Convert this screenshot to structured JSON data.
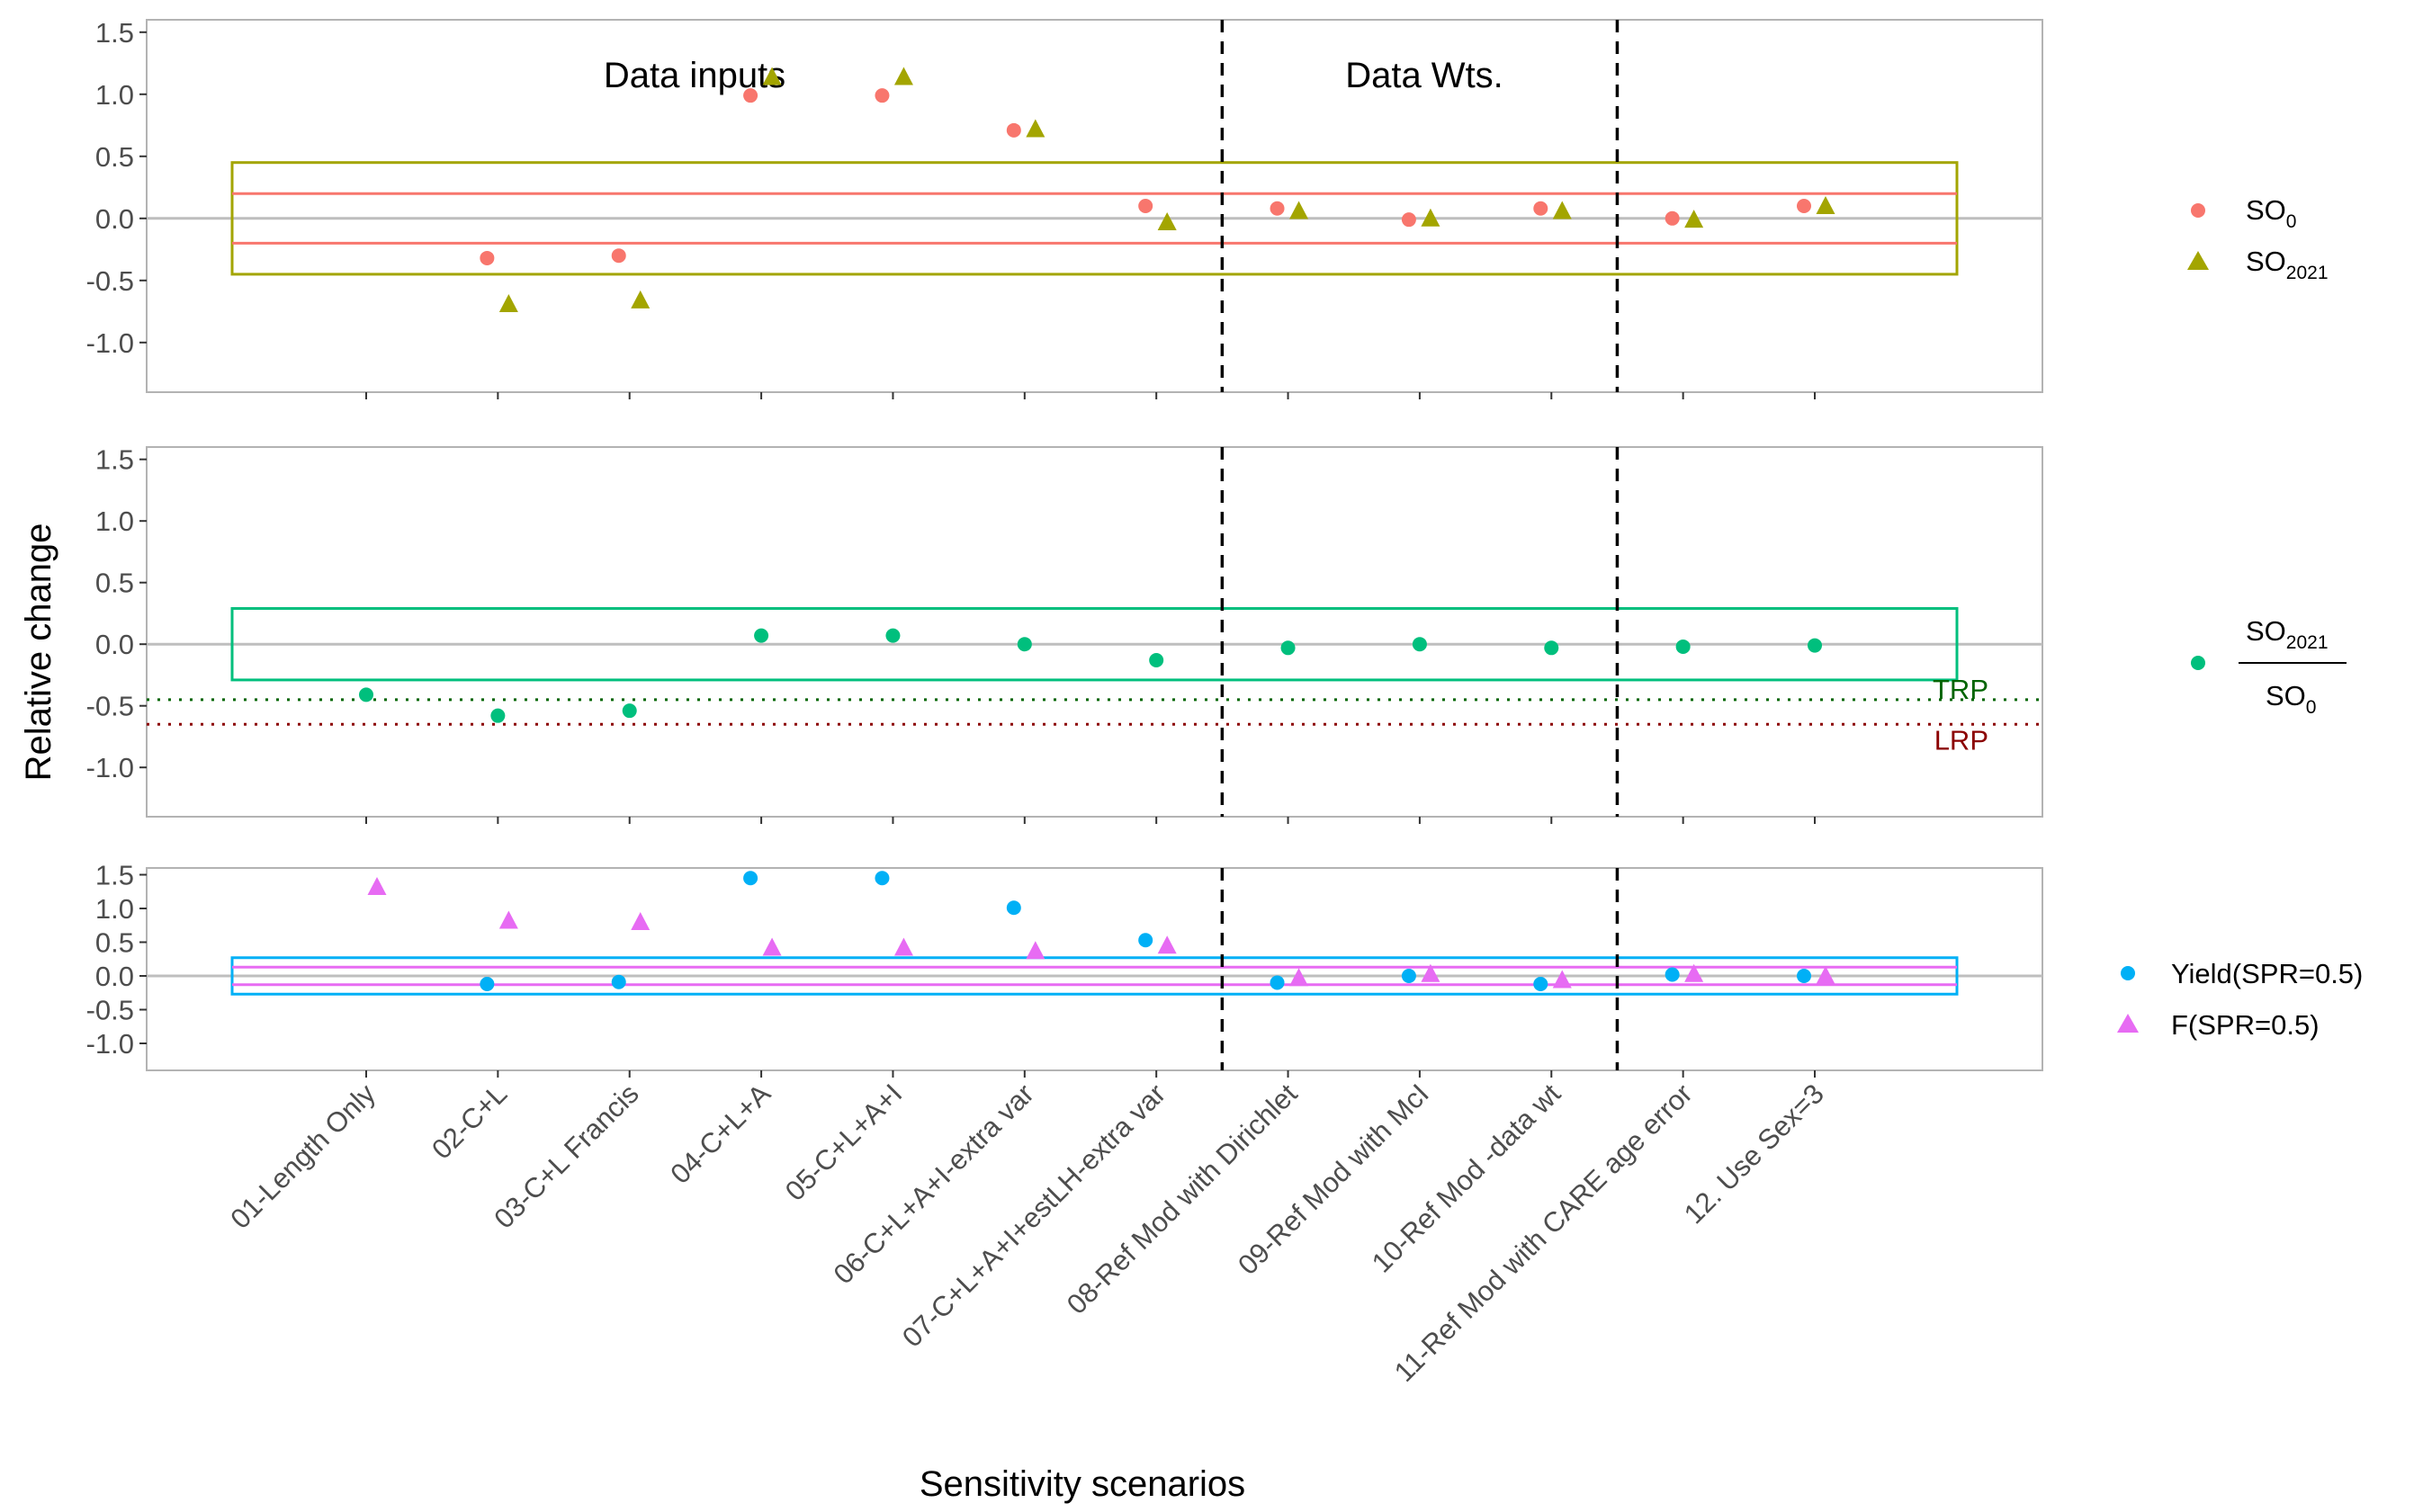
{
  "chart_data": {
    "type": "scatter",
    "xlabel": "Sensitivity scenarios",
    "ylabel": "Relative change",
    "categories": [
      "01-Length Only",
      "02-C+L",
      "03-C+L Francis",
      "04-C+L+A",
      "05-C+L+A+I",
      "06-C+L+A+I-extra var",
      "07-C+L+A+I+estLH-extra var",
      "08-Ref Mod with Dirichlet",
      "09-Ref Mod with McI",
      "10-Ref Mod -data wt",
      "11-Ref Mod with CARE age error",
      "12. Use Sex=3"
    ],
    "group_dividers_after": [
      7.5,
      10.5
    ],
    "panels": [
      {
        "id": "so",
        "ylim": [
          -1.4,
          1.6
        ],
        "yticks": [
          "1.5",
          "1.0",
          "0.5",
          "0.0",
          "-0.5",
          "-1.0"
        ],
        "ytick_values": [
          1.5,
          1.0,
          0.5,
          0.0,
          -0.5,
          -1.0
        ],
        "group_labels": [
          "Data inputs",
          "Data Wts."
        ],
        "bands": [
          {
            "lo": -0.45,
            "hi": 0.45,
            "color": "#A3A500"
          },
          {
            "lo": -0.2,
            "hi": 0.2,
            "color": "#F8766D",
            "lines_only": true
          }
        ],
        "series": [
          {
            "name": "SO0",
            "label": "SO",
            "sub": "0",
            "shape": "circle",
            "color": "#F8766D",
            "values": [
              null,
              -0.32,
              -0.3,
              0.99,
              0.99,
              0.71,
              0.1,
              0.08,
              -0.01,
              0.08,
              0.0,
              0.1
            ]
          },
          {
            "name": "SO2021",
            "label": "SO",
            "sub": "2021",
            "shape": "triangle",
            "color": "#A3A500",
            "values": [
              null,
              -0.69,
              -0.66,
              1.14,
              1.14,
              0.72,
              -0.03,
              0.06,
              0.0,
              0.06,
              -0.01,
              0.1
            ]
          }
        ]
      },
      {
        "id": "ratio",
        "ylim": [
          -1.4,
          1.6
        ],
        "yticks": [
          "1.5",
          "1.0",
          "0.5",
          "0.0",
          "-0.5",
          "-1.0"
        ],
        "ytick_values": [
          1.5,
          1.0,
          0.5,
          0.0,
          -0.5,
          -1.0
        ],
        "bands": [
          {
            "lo": -0.29,
            "hi": 0.29,
            "color": "#00BF7D"
          }
        ],
        "reference_lines": [
          {
            "label": "TRP",
            "value": -0.45,
            "color": "#006400"
          },
          {
            "label": "LRP",
            "value": -0.65,
            "color": "#8B0000"
          }
        ],
        "series": [
          {
            "name": "SO2021/SO0",
            "num": "SO",
            "num_sub": "2021",
            "den": "SO",
            "den_sub": "0",
            "shape": "circle",
            "color": "#00BF7D",
            "values": [
              -0.41,
              -0.58,
              -0.54,
              0.07,
              0.07,
              0.0,
              -0.13,
              -0.03,
              0.0,
              -0.03,
              -0.02,
              -0.01
            ]
          }
        ]
      },
      {
        "id": "yield",
        "ylim": [
          -1.4,
          1.6
        ],
        "yticks": [
          "1.5",
          "1.0",
          "0.5",
          "0.0",
          "-0.5",
          "-1.0"
        ],
        "ytick_values": [
          1.5,
          1.0,
          0.5,
          0.0,
          -0.5,
          -1.0
        ],
        "bands": [
          {
            "lo": -0.27,
            "hi": 0.27,
            "color": "#00B0F6"
          },
          {
            "lo": -0.13,
            "hi": 0.13,
            "color": "#E76BF3",
            "lines_only": true
          }
        ],
        "series": [
          {
            "name": "Yield(SPR=0.5)",
            "label": "Yield(SPR=0.5)",
            "shape": "circle",
            "color": "#00B0F6",
            "values": [
              null,
              -0.12,
              -0.09,
              1.45,
              1.45,
              1.01,
              0.53,
              -0.1,
              0.0,
              -0.12,
              0.02,
              0.0
            ]
          },
          {
            "name": "F(SPR=0.5)",
            "label": "F(SPR=0.5)",
            "shape": "triangle",
            "color": "#E76BF3",
            "values": [
              1.32,
              0.82,
              0.8,
              0.42,
              0.42,
              0.37,
              0.45,
              -0.03,
              0.03,
              -0.06,
              0.03,
              0.0
            ]
          }
        ]
      }
    ]
  }
}
